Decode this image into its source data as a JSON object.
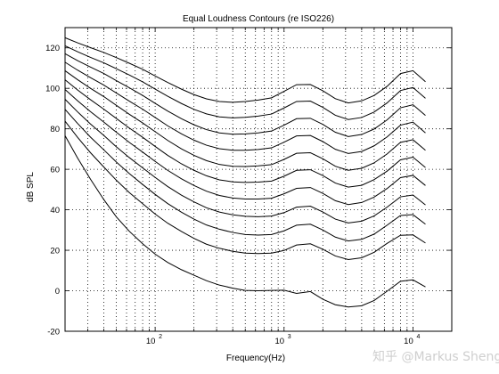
{
  "chart_data": {
    "type": "line",
    "title": "Equal Loudness Contours (re ISO226)",
    "xlabel": "Frequency(Hz)",
    "ylabel": "dB SPL",
    "xscale": "log",
    "xlim": [
      20,
      20000
    ],
    "ylim": [
      -20,
      130
    ],
    "grid": true,
    "legend": "none",
    "line_color": "#000000",
    "x_ticks": [
      {
        "value": 100,
        "base": "10",
        "exp": "2"
      },
      {
        "value": 1000,
        "base": "10",
        "exp": "3"
      },
      {
        "value": 10000,
        "base": "10",
        "exp": "4"
      }
    ],
    "y_ticks": [
      -20,
      0,
      20,
      40,
      60,
      80,
      100,
      120
    ],
    "x": [
      20,
      25,
      31.5,
      40,
      50,
      63,
      80,
      100,
      125,
      160,
      200,
      250,
      315,
      400,
      500,
      630,
      800,
      1000,
      1250,
      1600,
      2000,
      2500,
      3150,
      4000,
      5000,
      6300,
      8000,
      10000,
      12500
    ],
    "series": [
      {
        "values": [
          76.6,
          65.6,
          55.1,
          45.0,
          36.5,
          29.4,
          23.2,
          18.1,
          14.0,
          10.4,
          7.7,
          5.0,
          2.8,
          1.3,
          0.2,
          -0.0,
          0.2,
          0.3,
          -1.3,
          -0.4,
          -4.2,
          -6.9,
          -8.0,
          -7.4,
          -4.8,
          -0.2,
          4.7,
          5.4,
          1.9
        ]
      },
      {
        "values": [
          83.8,
          75.8,
          68.2,
          61.1,
          54.6,
          48.5,
          43.0,
          37.9,
          33.4,
          29.3,
          25.9,
          23.0,
          21.0,
          19.5,
          18.6,
          18.4,
          18.6,
          19.9,
          22.6,
          23.2,
          20.5,
          17.2,
          15.4,
          16.3,
          19.0,
          23.4,
          27.4,
          27.6,
          23.6
        ]
      },
      {
        "values": [
          89.6,
          82.7,
          75.9,
          69.6,
          63.6,
          57.9,
          52.5,
          47.6,
          43.1,
          38.8,
          35.4,
          32.5,
          30.4,
          28.8,
          27.8,
          27.5,
          27.8,
          29.6,
          32.4,
          32.9,
          30.0,
          26.5,
          24.6,
          25.4,
          28.0,
          32.4,
          37.2,
          37.6,
          32.9
        ]
      },
      {
        "values": [
          94.6,
          88.4,
          82.4,
          76.7,
          71.1,
          65.8,
          60.7,
          56.0,
          51.5,
          47.2,
          43.9,
          41.0,
          38.9,
          37.5,
          36.8,
          36.6,
          36.9,
          38.6,
          41.3,
          41.8,
          38.9,
          35.4,
          33.5,
          34.4,
          37.0,
          41.3,
          46.4,
          47.3,
          42.4
        ]
      },
      {
        "values": [
          99.4,
          93.9,
          88.5,
          83.3,
          78.3,
          73.3,
          68.5,
          63.9,
          59.5,
          55.3,
          52.0,
          49.2,
          47.1,
          45.8,
          45.3,
          45.3,
          45.7,
          47.9,
          50.6,
          51.0,
          48.1,
          44.5,
          42.6,
          43.6,
          46.3,
          50.5,
          55.9,
          57.0,
          52.0
        ]
      },
      {
        "values": [
          104.2,
          99.2,
          94.4,
          89.7,
          85.1,
          80.4,
          75.8,
          71.3,
          66.9,
          62.7,
          59.5,
          56.8,
          54.8,
          53.8,
          53.5,
          53.7,
          54.2,
          56.6,
          59.5,
          59.8,
          56.9,
          53.2,
          51.2,
          52.1,
          54.9,
          59.1,
          64.7,
          66.0,
          60.9
        ]
      },
      {
        "values": [
          108.7,
          104.3,
          100.0,
          95.9,
          91.6,
          87.2,
          82.9,
          78.6,
          74.3,
          70.1,
          66.9,
          64.3,
          62.4,
          61.5,
          61.4,
          61.7,
          62.3,
          64.9,
          67.9,
          68.2,
          65.2,
          61.5,
          59.5,
          60.5,
          63.2,
          67.6,
          73.3,
          74.6,
          69.4
        ]
      },
      {
        "values": [
          112.9,
          109.0,
          105.3,
          101.6,
          97.7,
          93.7,
          89.7,
          85.6,
          81.5,
          77.5,
          74.4,
          71.9,
          70.2,
          69.4,
          69.4,
          69.8,
          70.6,
          73.4,
          76.5,
          76.7,
          73.7,
          69.9,
          67.8,
          68.8,
          71.6,
          76.0,
          81.8,
          83.3,
          78.0
        ]
      },
      {
        "values": [
          117.1,
          113.7,
          110.5,
          107.3,
          103.8,
          100.3,
          96.5,
          92.6,
          88.8,
          85.0,
          82.0,
          79.6,
          78.0,
          77.3,
          77.5,
          78.0,
          78.9,
          81.8,
          85.0,
          85.2,
          82.2,
          78.3,
          76.2,
          77.2,
          79.9,
          84.4,
          90.4,
          91.9,
          86.6
        ]
      },
      {
        "values": [
          121.0,
          118.1,
          115.3,
          112.6,
          109.7,
          106.6,
          103.2,
          99.6,
          96.1,
          92.5,
          89.6,
          87.4,
          85.9,
          85.4,
          85.7,
          86.3,
          87.3,
          90.3,
          93.5,
          93.7,
          90.6,
          86.7,
          84.6,
          85.6,
          88.3,
          92.8,
          98.9,
          100.4,
          95.1
        ]
      },
      {
        "values": [
          125.0,
          122.5,
          120.1,
          117.7,
          115.2,
          112.4,
          109.4,
          106.1,
          102.9,
          99.6,
          96.9,
          94.8,
          93.5,
          93.1,
          93.5,
          94.2,
          95.3,
          98.5,
          101.8,
          101.9,
          98.8,
          94.9,
          92.8,
          93.8,
          96.5,
          101.0,
          107.3,
          108.7,
          103.3
        ]
      }
    ]
  },
  "watermark": {
    "text": "知乎 @Markus Sheng"
  }
}
